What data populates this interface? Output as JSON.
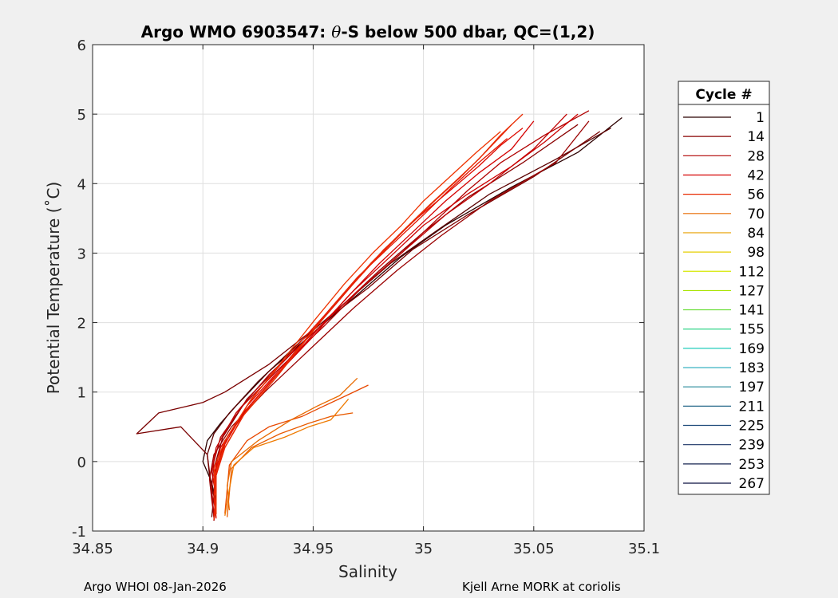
{
  "chart_data": {
    "type": "line",
    "title_prefix": "Argo WMO 6903547: ",
    "title_symbol": "θ",
    "title_suffix": "-S below 500 dbar,  QC=(1,2)",
    "xlabel": "Salinity",
    "ylabel": "Potential Temperature (˚C)",
    "xlim": [
      34.85,
      35.1
    ],
    "ylim": [
      -1,
      6
    ],
    "xticks": [
      "34.85",
      "34.9",
      "34.95",
      "35",
      "35.05",
      "35.1"
    ],
    "yticks": [
      "-1",
      "0",
      "1",
      "2",
      "3",
      "4",
      "5",
      "6"
    ],
    "grid": true,
    "legend": {
      "title": "Cycle #",
      "placement": "outside-right",
      "entries": [
        {
          "label": "1",
          "color": "#2b0000"
        },
        {
          "label": "14",
          "color": "#8a0000"
        },
        {
          "label": "28",
          "color": "#b00000"
        },
        {
          "label": "42",
          "color": "#d40000"
        },
        {
          "label": "56",
          "color": "#e82a00"
        },
        {
          "label": "70",
          "color": "#e86a00"
        },
        {
          "label": "84",
          "color": "#e8a000"
        },
        {
          "label": "98",
          "color": "#e6cf00"
        },
        {
          "label": "112",
          "color": "#d6e800"
        },
        {
          "label": "127",
          "color": "#a8e400"
        },
        {
          "label": "141",
          "color": "#66dd33"
        },
        {
          "label": "155",
          "color": "#33d58a"
        },
        {
          "label": "169",
          "color": "#22ccbb"
        },
        {
          "label": "183",
          "color": "#22aabb"
        },
        {
          "label": "197",
          "color": "#228899"
        },
        {
          "label": "211",
          "color": "#226688"
        },
        {
          "label": "225",
          "color": "#1d4a7a"
        },
        {
          "label": "239",
          "color": "#1a3366"
        },
        {
          "label": "253",
          "color": "#14224f"
        },
        {
          "label": "267",
          "color": "#0b1140"
        }
      ]
    },
    "series": [
      {
        "color": "#2b0000",
        "x": [
          34.905,
          34.906,
          34.904,
          34.9,
          34.902,
          34.908,
          34.915,
          34.93,
          34.95,
          34.97,
          34.99,
          35.01,
          35.04,
          35.07,
          35.09
        ],
        "y": [
          -0.85,
          -0.6,
          -0.3,
          0,
          0.3,
          0.55,
          0.8,
          1.3,
          1.85,
          2.4,
          2.95,
          3.4,
          3.95,
          4.45,
          4.95
        ]
      },
      {
        "color": "#5a0000",
        "x": [
          34.904,
          34.905,
          34.903,
          34.902,
          34.905,
          34.912,
          34.925,
          34.945,
          34.965,
          34.985,
          35.005,
          35.03,
          35.06,
          35.085
        ],
        "y": [
          -0.8,
          -0.5,
          -0.2,
          0.1,
          0.4,
          0.7,
          1.15,
          1.75,
          2.3,
          2.85,
          3.3,
          3.85,
          4.35,
          4.8
        ]
      },
      {
        "color": "#7a0000",
        "x": [
          34.905,
          34.904,
          34.902,
          34.89,
          34.87,
          34.88,
          34.9,
          34.91,
          34.93,
          34.95,
          34.975,
          34.995,
          35.02,
          35.05,
          35.08
        ],
        "y": [
          -0.8,
          -0.4,
          0.1,
          0.5,
          0.4,
          0.7,
          0.85,
          1.0,
          1.4,
          1.9,
          2.5,
          3.05,
          3.55,
          4.1,
          4.75
        ]
      },
      {
        "color": "#8a0000",
        "x": [
          34.905,
          34.906,
          34.905,
          34.909,
          34.92,
          34.94,
          34.96,
          34.98,
          35.0,
          35.02,
          35.045,
          35.07
        ],
        "y": [
          -0.82,
          -0.45,
          -0.1,
          0.35,
          0.9,
          1.55,
          2.15,
          2.75,
          3.3,
          3.8,
          4.3,
          4.85
        ]
      },
      {
        "color": "#9a0000",
        "x": [
          34.905,
          34.904,
          34.903,
          34.905,
          34.913,
          34.928,
          34.948,
          34.968,
          34.988,
          35.008,
          35.03,
          35.06,
          35.075
        ],
        "y": [
          -0.78,
          -0.55,
          -0.25,
          0.1,
          0.5,
          1.0,
          1.6,
          2.2,
          2.75,
          3.25,
          3.75,
          4.3,
          4.9
        ]
      },
      {
        "color": "#b00000",
        "x": [
          34.905,
          34.904,
          34.905,
          34.908,
          34.918,
          34.935,
          34.955,
          34.972,
          34.99,
          35.005,
          35.02,
          35.035,
          35.055,
          35.075
        ],
        "y": [
          -0.8,
          -0.4,
          0,
          0.35,
          0.8,
          1.35,
          1.95,
          2.5,
          3.0,
          3.45,
          3.9,
          4.3,
          4.7,
          5.05
        ]
      },
      {
        "color": "#c00000",
        "x": [
          34.905,
          34.906,
          34.904,
          34.906,
          34.915,
          34.93,
          34.95,
          34.97,
          34.99,
          35.01,
          35.03,
          35.05,
          35.065
        ],
        "y": [
          -0.85,
          -0.5,
          -0.15,
          0.2,
          0.7,
          1.25,
          1.85,
          2.45,
          3.0,
          3.55,
          4.0,
          4.5,
          5.0
        ]
      },
      {
        "color": "#cc0000",
        "x": [
          34.906,
          34.905,
          34.906,
          34.91,
          34.92,
          34.935,
          34.952,
          34.968,
          34.985,
          35.0,
          35.02,
          35.04,
          35.055,
          35.07
        ],
        "y": [
          -0.75,
          -0.45,
          -0.1,
          0.3,
          0.75,
          1.3,
          1.9,
          2.45,
          2.95,
          3.4,
          3.85,
          4.25,
          4.6,
          5.0
        ]
      },
      {
        "color": "#d40000",
        "x": [
          34.905,
          34.906,
          34.905,
          34.908,
          34.917,
          34.932,
          34.95,
          34.965,
          34.98,
          34.995,
          35.01,
          35.025,
          35.04,
          35.05
        ],
        "y": [
          -0.8,
          -0.5,
          -0.2,
          0.2,
          0.65,
          1.2,
          1.8,
          2.35,
          2.85,
          3.3,
          3.75,
          4.15,
          4.5,
          4.9
        ]
      },
      {
        "color": "#dd0a00",
        "x": [
          34.906,
          34.905,
          34.906,
          34.91,
          34.92,
          34.937,
          34.953,
          34.968,
          34.982,
          34.997,
          35.012,
          35.025,
          35.035,
          35.045
        ],
        "y": [
          -0.82,
          -0.55,
          -0.2,
          0.25,
          0.8,
          1.4,
          2.0,
          2.55,
          3.05,
          3.5,
          3.9,
          4.25,
          4.55,
          4.8
        ]
      },
      {
        "color": "#e21500",
        "x": [
          34.905,
          34.906,
          34.906,
          34.911,
          34.922,
          34.938,
          34.955,
          34.97,
          34.985,
          35.0,
          35.013,
          35.025,
          35.038
        ],
        "y": [
          -0.78,
          -0.45,
          -0.1,
          0.35,
          0.9,
          1.5,
          2.1,
          2.65,
          3.1,
          3.55,
          3.95,
          4.3,
          4.65
        ]
      },
      {
        "color": "#e82000",
        "x": [
          34.906,
          34.905,
          34.906,
          34.91,
          34.92,
          34.935,
          34.95,
          34.965,
          34.978,
          34.992,
          35.005,
          35.017,
          35.028,
          35.04
        ],
        "y": [
          -0.8,
          -0.5,
          -0.2,
          0.2,
          0.75,
          1.3,
          1.9,
          2.45,
          2.9,
          3.35,
          3.75,
          4.1,
          4.45,
          4.85
        ]
      },
      {
        "color": "#e82a00",
        "x": [
          34.905,
          34.906,
          34.905,
          34.909,
          34.918,
          34.933,
          34.948,
          34.962,
          34.976,
          34.99,
          35.003,
          35.015,
          35.025,
          35.035,
          35.045
        ],
        "y": [
          -0.84,
          -0.55,
          -0.25,
          0.15,
          0.65,
          1.2,
          1.8,
          2.35,
          2.85,
          3.3,
          3.7,
          4.05,
          4.35,
          4.7,
          5.0
        ]
      },
      {
        "color": "#ee3300",
        "x": [
          34.906,
          34.906,
          34.905,
          34.91,
          34.921,
          34.936,
          34.951,
          34.964,
          34.977,
          34.99,
          35.0,
          35.012,
          35.024,
          35.035
        ],
        "y": [
          -0.76,
          -0.45,
          -0.1,
          0.3,
          0.85,
          1.45,
          2.05,
          2.55,
          3.0,
          3.4,
          3.75,
          4.1,
          4.45,
          4.75
        ]
      },
      {
        "color": "#e84800",
        "x": [
          34.91,
          34.911,
          34.912,
          34.92,
          34.93,
          34.945,
          34.955,
          34.965,
          34.975
        ],
        "y": [
          -0.75,
          -0.4,
          -0.05,
          0.3,
          0.5,
          0.65,
          0.8,
          0.95,
          1.1
        ]
      },
      {
        "color": "#e85a00",
        "x": [
          34.911,
          34.912,
          34.913,
          34.922,
          34.935,
          34.948,
          34.958,
          34.968
        ],
        "y": [
          -0.8,
          -0.45,
          -0.1,
          0.2,
          0.4,
          0.55,
          0.65,
          0.7
        ]
      },
      {
        "color": "#e86a00",
        "x": [
          34.912,
          34.911,
          34.913,
          34.925,
          34.94,
          34.952,
          34.962,
          34.97
        ],
        "y": [
          -0.7,
          -0.35,
          0,
          0.3,
          0.6,
          0.8,
          0.95,
          1.2
        ]
      },
      {
        "color": "#ee7a00",
        "x": [
          34.91,
          34.912,
          34.914,
          34.923,
          34.937,
          34.948,
          34.958,
          34.966
        ],
        "y": [
          -0.78,
          -0.4,
          -0.05,
          0.2,
          0.35,
          0.5,
          0.6,
          0.9
        ]
      }
    ]
  },
  "footer": {
    "left": "Argo WHOI 08-Jan-2026",
    "right": "Kjell Arne MORK at coriolis"
  }
}
